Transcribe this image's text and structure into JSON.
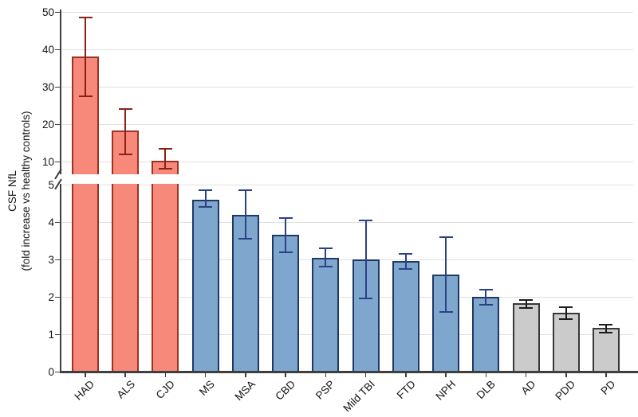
{
  "chart_data": {
    "type": "bar",
    "title": "",
    "ylabel_line1": "CSF NfL",
    "ylabel_line2": "(fold increase vs healthy controls)",
    "xlabel": "",
    "categories": [
      "HAD",
      "ALS",
      "CJD",
      "MS",
      "MSA",
      "CBD",
      "PSP",
      "Mild TBI",
      "FTD",
      "NPH",
      "DLB",
      "AD",
      "PDD",
      "PD"
    ],
    "values": [
      38,
      18.2,
      10.3,
      4.6,
      4.2,
      3.65,
      3.05,
      3.0,
      2.95,
      2.6,
      2.0,
      1.82,
      1.58,
      1.16
    ],
    "error_low": [
      27.5,
      12,
      8,
      4.4,
      3.55,
      3.2,
      2.8,
      1.95,
      2.75,
      1.6,
      1.78,
      1.7,
      1.4,
      1.05
    ],
    "error_high": [
      48.5,
      24,
      13.3,
      4.85,
      4.85,
      4.1,
      3.3,
      4.05,
      3.15,
      3.6,
      2.2,
      1.92,
      1.73,
      1.25
    ],
    "groups": [
      "red",
      "red",
      "red",
      "blue",
      "blue",
      "blue",
      "blue",
      "blue",
      "blue",
      "blue",
      "blue",
      "gray",
      "gray",
      "gray"
    ],
    "group_colors": {
      "red": {
        "fill": "#F7897B",
        "stroke": "#9C3124",
        "error": "#8B2015"
      },
      "blue": {
        "fill": "#7FA7CE",
        "stroke": "#1F3864",
        "error": "#2A4187"
      },
      "gray": {
        "fill": "#CBCBCB",
        "stroke": "#383838",
        "error": "#1C1C1C"
      }
    },
    "y_axis": {
      "lower_ticks": [
        0,
        1,
        2,
        3,
        4,
        5
      ],
      "upper_ticks": [
        10,
        20,
        30,
        40,
        50
      ],
      "lower_range": [
        0,
        5
      ],
      "upper_range": [
        10,
        50
      ],
      "break_between": [
        5,
        10
      ]
    },
    "grid": true,
    "legend": false
  }
}
